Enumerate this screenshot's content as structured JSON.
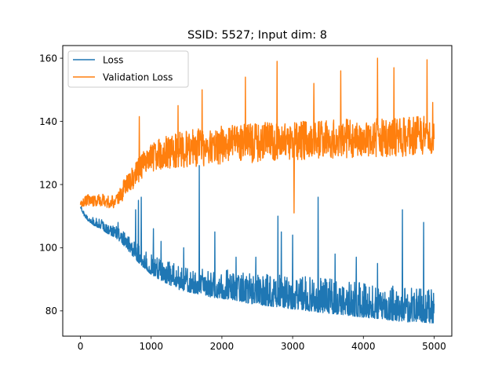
{
  "chart_data": {
    "type": "line",
    "title": "SSID: 5527; Input dim: 8",
    "xlabel": "",
    "ylabel": "",
    "xlim": [
      -250,
      5250
    ],
    "ylim": [
      72,
      164
    ],
    "xticks": [
      0,
      1000,
      2000,
      3000,
      4000,
      5000
    ],
    "yticks": [
      80,
      100,
      120,
      140,
      160
    ],
    "grid": false,
    "legend_position": "upper-left",
    "series": [
      {
        "name": "Loss",
        "color": "#1f77b4",
        "x": [
          0,
          50,
          100,
          200,
          300,
          400,
          500,
          600,
          700,
          800,
          900,
          1000,
          1200,
          1400,
          1600,
          1800,
          2000,
          2200,
          2400,
          2600,
          2800,
          3000,
          3200,
          3400,
          3600,
          3800,
          4000,
          4200,
          4400,
          4600,
          4800,
          5000
        ],
        "values": [
          113,
          110.5,
          109,
          107.5,
          106.5,
          105,
          104,
          102,
          99.5,
          97,
          95,
          93,
          90.5,
          88.5,
          87.5,
          86.5,
          86,
          85.5,
          84.5,
          84,
          83.5,
          83,
          82.5,
          82,
          81.5,
          81,
          80.5,
          80,
          79.5,
          79,
          79,
          78.5
        ],
        "spread": [
          0.3,
          0.8,
          1.0,
          1.2,
          1.4,
          1.5,
          1.7,
          2.0,
          2.2,
          2.5,
          2.8,
          3.0,
          3.3,
          3.6,
          3.8,
          4.0,
          4.2,
          4.4,
          4.5,
          4.6,
          4.7,
          4.8,
          4.9,
          5.0,
          5.0,
          5.0,
          5.0,
          5.0,
          5.0,
          5.0,
          5.0,
          5.0
        ],
        "spikes": [
          {
            "x": 530,
            "y": 108
          },
          {
            "x": 780,
            "y": 112
          },
          {
            "x": 820,
            "y": 115
          },
          {
            "x": 860,
            "y": 116
          },
          {
            "x": 1030,
            "y": 106
          },
          {
            "x": 1140,
            "y": 102
          },
          {
            "x": 1460,
            "y": 100
          },
          {
            "x": 1680,
            "y": 126
          },
          {
            "x": 1900,
            "y": 105
          },
          {
            "x": 2200,
            "y": 97
          },
          {
            "x": 2480,
            "y": 97
          },
          {
            "x": 2790,
            "y": 110
          },
          {
            "x": 2840,
            "y": 105
          },
          {
            "x": 3000,
            "y": 104
          },
          {
            "x": 3360,
            "y": 116
          },
          {
            "x": 3600,
            "y": 98
          },
          {
            "x": 3900,
            "y": 97
          },
          {
            "x": 4200,
            "y": 95
          },
          {
            "x": 4550,
            "y": 112
          },
          {
            "x": 4850,
            "y": 108
          }
        ]
      },
      {
        "name": "Validation Loss",
        "color": "#ff7f0e",
        "x": [
          0,
          50,
          100,
          200,
          300,
          400,
          500,
          550,
          600,
          700,
          800,
          900,
          1000,
          1200,
          1400,
          1600,
          1800,
          2000,
          2200,
          2400,
          2600,
          2800,
          3000,
          3200,
          3400,
          3600,
          3800,
          4000,
          4200,
          4400,
          4600,
          4800,
          5000
        ],
        "values": [
          113.5,
          114.5,
          115,
          115,
          115,
          114.5,
          114.5,
          116,
          118,
          121,
          124,
          127,
          128.5,
          130,
          131,
          131.5,
          132,
          132.5,
          133,
          133,
          133.5,
          133.5,
          134,
          134,
          134,
          134.5,
          134.5,
          134.5,
          135,
          135,
          135,
          135.5,
          136
        ],
        "spread": [
          1.0,
          1.5,
          1.8,
          2.0,
          2.0,
          2.0,
          2.0,
          2.5,
          3.0,
          3.5,
          4.0,
          4.5,
          5.0,
          5.5,
          5.8,
          6.0,
          6.0,
          6.0,
          6.2,
          6.2,
          6.2,
          6.2,
          6.2,
          6.2,
          6.2,
          6.2,
          6.2,
          6.2,
          6.2,
          6.2,
          6.2,
          6.2,
          6.2
        ],
        "spikes": [
          {
            "x": 830,
            "y": 141.5
          },
          {
            "x": 1380,
            "y": 145
          },
          {
            "x": 1720,
            "y": 150
          },
          {
            "x": 2330,
            "y": 154
          },
          {
            "x": 2780,
            "y": 159
          },
          {
            "x": 3020,
            "y": 111
          },
          {
            "x": 3300,
            "y": 152
          },
          {
            "x": 3680,
            "y": 156
          },
          {
            "x": 4200,
            "y": 160
          },
          {
            "x": 4430,
            "y": 157
          },
          {
            "x": 4900,
            "y": 159.5
          },
          {
            "x": 4980,
            "y": 146
          }
        ]
      }
    ]
  }
}
